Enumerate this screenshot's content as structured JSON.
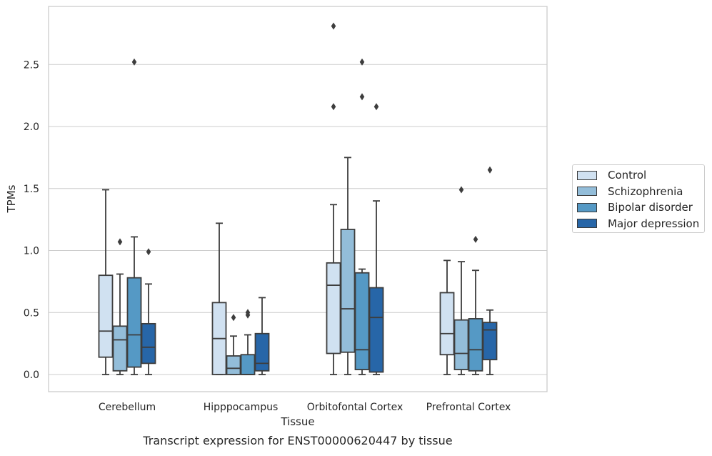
{
  "chart_data": {
    "type": "box",
    "xlabel": "Tissue",
    "ylabel": "TPMs",
    "caption": "Transcript expression for ENST00000620447 by tissue",
    "ylim": [
      -0.13,
      2.96
    ],
    "yticks": [
      "0.0",
      "0.5",
      "1.0",
      "1.5",
      "2.0",
      "2.5"
    ],
    "grid": "horizontal",
    "legend_position": "outside-right",
    "categories": [
      "Cerebellum",
      "Hipppocampus",
      "Orbitofontal Cortex",
      "Prefrontal Cortex"
    ],
    "series": [
      {
        "name": "Control",
        "color": "#d0e1f1",
        "boxes": [
          {
            "whislo": 0.0,
            "q1": 0.14,
            "med": 0.35,
            "q3": 0.8,
            "whishi": 1.49,
            "fliers": []
          },
          {
            "whislo": 0.0,
            "q1": 0.0,
            "med": 0.29,
            "q3": 0.58,
            "whishi": 1.22,
            "fliers": []
          },
          {
            "whislo": 0.0,
            "q1": 0.17,
            "med": 0.72,
            "q3": 0.9,
            "whishi": 1.37,
            "fliers": [
              2.16,
              2.81
            ]
          },
          {
            "whislo": 0.0,
            "q1": 0.16,
            "med": 0.33,
            "q3": 0.66,
            "whishi": 0.92,
            "fliers": []
          }
        ]
      },
      {
        "name": "Schizophrenia",
        "color": "#93bdd9",
        "boxes": [
          {
            "whislo": 0.0,
            "q1": 0.03,
            "med": 0.28,
            "q3": 0.39,
            "whishi": 0.81,
            "fliers": [
              1.07
            ]
          },
          {
            "whislo": 0.0,
            "q1": 0.0,
            "med": 0.05,
            "q3": 0.15,
            "whishi": 0.31,
            "fliers": [
              0.46
            ]
          },
          {
            "whislo": 0.0,
            "q1": 0.18,
            "med": 0.53,
            "q3": 1.17,
            "whishi": 1.75,
            "fliers": []
          },
          {
            "whislo": 0.0,
            "q1": 0.04,
            "med": 0.17,
            "q3": 0.44,
            "whishi": 0.91,
            "fliers": [
              1.49
            ]
          }
        ]
      },
      {
        "name": "Bipolar disorder",
        "color": "#5599c5",
        "boxes": [
          {
            "whislo": 0.0,
            "q1": 0.06,
            "med": 0.32,
            "q3": 0.78,
            "whishi": 1.11,
            "fliers": [
              2.52
            ]
          },
          {
            "whislo": 0.0,
            "q1": 0.0,
            "med": 0.0,
            "q3": 0.16,
            "whishi": 0.32,
            "fliers": [
              0.48,
              0.5
            ]
          },
          {
            "whislo": 0.0,
            "q1": 0.04,
            "med": 0.2,
            "q3": 0.82,
            "whishi": 0.85,
            "fliers": [
              2.24,
              2.52
            ]
          },
          {
            "whislo": 0.0,
            "q1": 0.03,
            "med": 0.2,
            "q3": 0.45,
            "whishi": 0.84,
            "fliers": [
              1.09
            ]
          }
        ]
      },
      {
        "name": "Major depression",
        "color": "#2766a8",
        "boxes": [
          {
            "whislo": 0.0,
            "q1": 0.09,
            "med": 0.22,
            "q3": 0.41,
            "whishi": 0.73,
            "fliers": [
              0.99
            ]
          },
          {
            "whislo": 0.0,
            "q1": 0.03,
            "med": 0.09,
            "q3": 0.33,
            "whishi": 0.62,
            "fliers": []
          },
          {
            "whislo": 0.0,
            "q1": 0.02,
            "med": 0.46,
            "q3": 0.7,
            "whishi": 1.4,
            "fliers": [
              2.16
            ]
          },
          {
            "whislo": 0.0,
            "q1": 0.12,
            "med": 0.36,
            "q3": 0.42,
            "whishi": 0.52,
            "fliers": [
              1.65
            ]
          }
        ]
      }
    ]
  }
}
